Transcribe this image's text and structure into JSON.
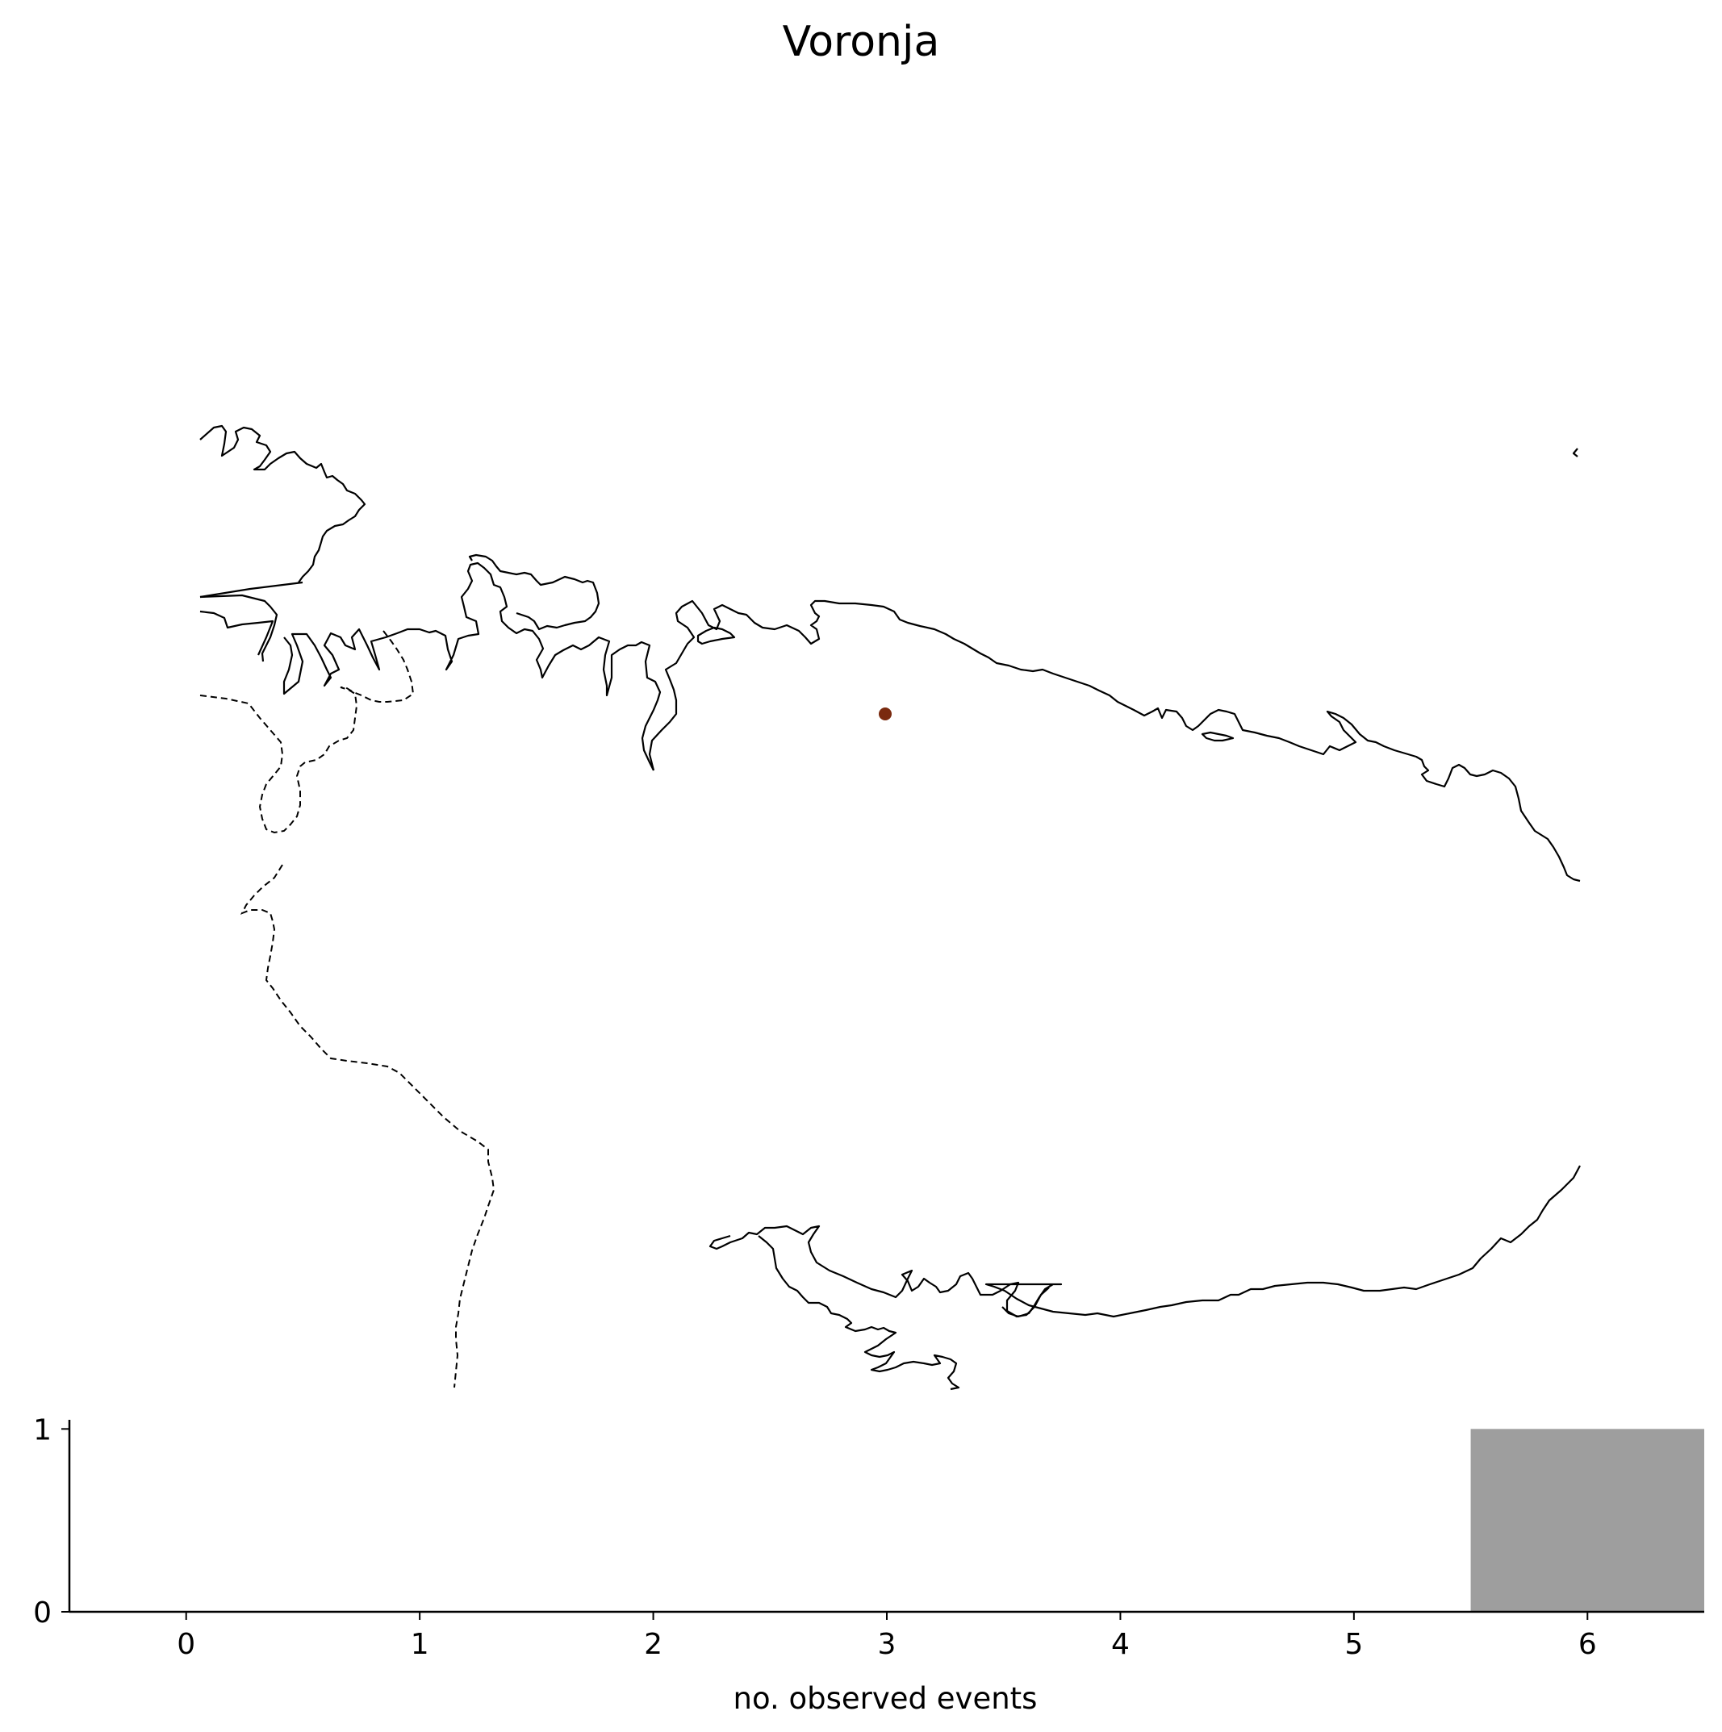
{
  "map": {
    "title": "Voronja",
    "station_marker": {
      "color": "#7a2a0f",
      "name": "Voronja"
    }
  },
  "chart_data": {
    "type": "bar",
    "xlabel": "no. observed events",
    "ylabel": "",
    "x_ticks": [
      "0",
      "1",
      "2",
      "3",
      "4",
      "5",
      "6"
    ],
    "y_ticks": [
      "0",
      "1"
    ],
    "xlim": [
      -0.5,
      6.5
    ],
    "ylim": [
      0,
      1.05
    ],
    "bars": [
      {
        "x": 6,
        "value": 1
      }
    ],
    "bar_color": "#9e9e9e",
    "grid": false
  }
}
